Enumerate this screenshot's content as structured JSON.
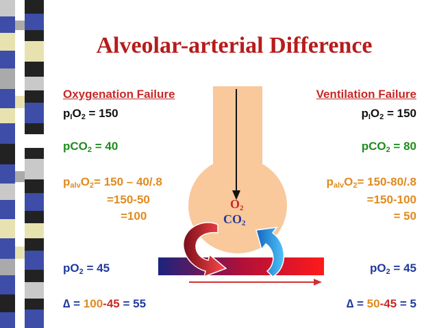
{
  "title": "Alveolar-arterial Difference",
  "left": {
    "heading": "Oxygenation Failure",
    "pio2": {
      "p": "p",
      "sub1": "I",
      "o": "O",
      "sub2": "2",
      "rest": " = 150"
    },
    "pco2": {
      "p": "pCO",
      "sub": "2",
      "rest": " = 40"
    },
    "palvo2": {
      "p": "p",
      "sub1": "alv",
      "o": "O",
      "sub2": "2",
      "rest": "= 150 – 40/.8"
    },
    "calc1": "=150-50",
    "calc2": "=100",
    "po2": "pO2 = 45",
    "delta": {
      "sym": "∆",
      "eq": " = ",
      "a": "100",
      "minus": "-",
      "b": "45",
      "eq2": " = ",
      "r": "55"
    }
  },
  "right": {
    "heading": "Ventilation Failure",
    "pio2": {
      "p": "p",
      "sub1": "I",
      "o": "O",
      "sub2": "2",
      "rest": " = 150"
    },
    "pco2": {
      "p": "pCO",
      "sub": "2",
      "rest": " = 80"
    },
    "palvo2": {
      "p": "p",
      "sub1": "alv",
      "o": "O",
      "sub2": "2",
      "rest": "= 150-80/.8"
    },
    "calc1": "=150-100",
    "calc2": "= 50",
    "po2": "pO2 = 45",
    "delta": {
      "sym": "∆",
      "eq": " = ",
      "a": "50",
      "minus": "-",
      "b": "45",
      "eq2": " = ",
      "r": "5"
    }
  },
  "diagram": {
    "o2_label": "O2",
    "co2_label": "CO2"
  },
  "colors": {
    "title": "#b71c1c",
    "heading": "#c62828",
    "pco2": "#1e8c1e",
    "orange": "#e08a1e",
    "blue": "#1f3a9c",
    "flask": "#f9c89b"
  }
}
